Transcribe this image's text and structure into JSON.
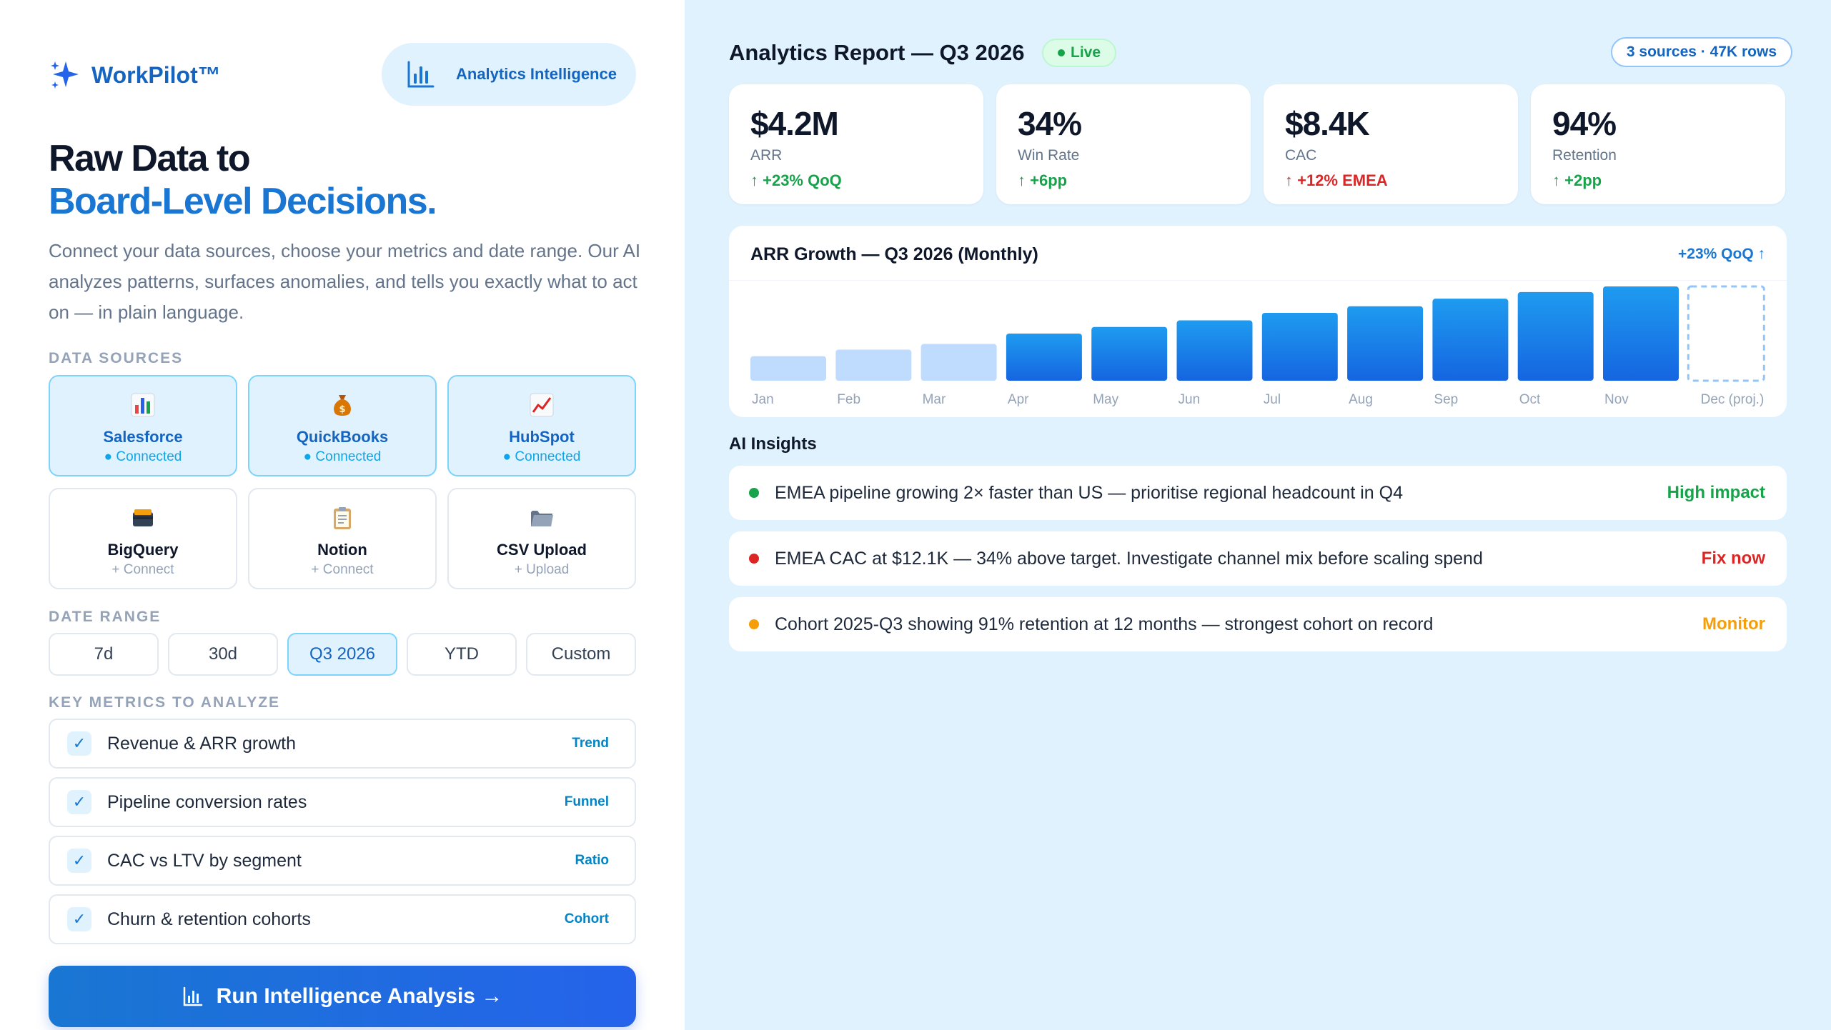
{
  "brand": {
    "name": "WorkPilot™"
  },
  "header_pill": {
    "label": "Analytics Intelligence"
  },
  "hero": {
    "line1": "Raw Data to",
    "line2": "Board-Level Decisions.",
    "description": "Connect your data sources, choose your metrics and date range. Our AI analyzes patterns, surfaces anomalies, and tells you exactly what to act on — in plain language."
  },
  "data_sources": {
    "label": "DATA SOURCES",
    "items": [
      {
        "name": "Salesforce",
        "status": "● Connected",
        "connected": true,
        "icon": "bar-chart-icon"
      },
      {
        "name": "QuickBooks",
        "status": "● Connected",
        "connected": true,
        "icon": "money-bag-icon"
      },
      {
        "name": "HubSpot",
        "status": "● Connected",
        "connected": true,
        "icon": "trend-chart-icon"
      },
      {
        "name": "BigQuery",
        "status": "+ Connect",
        "connected": false,
        "icon": "card-box-icon"
      },
      {
        "name": "Notion",
        "status": "+ Connect",
        "connected": false,
        "icon": "clipboard-icon"
      },
      {
        "name": "CSV Upload",
        "status": "+ Upload",
        "connected": false,
        "icon": "folder-icon"
      }
    ]
  },
  "date_range": {
    "label": "DATE RANGE",
    "options": [
      "7d",
      "30d",
      "Q3 2026",
      "YTD",
      "Custom"
    ],
    "selected": "Q3 2026"
  },
  "metrics": {
    "label": "KEY METRICS TO ANALYZE",
    "items": [
      {
        "label": "Revenue & ARR growth",
        "tag": "Trend",
        "checked": true
      },
      {
        "label": "Pipeline conversion rates",
        "tag": "Funnel",
        "checked": true
      },
      {
        "label": "CAC vs LTV by segment",
        "tag": "Ratio",
        "checked": true
      },
      {
        "label": "Churn & retention cohorts",
        "tag": "Cohort",
        "checked": true
      }
    ],
    "check_glyph": "✓"
  },
  "run_button": {
    "label": "Run Intelligence Analysis →"
  },
  "report": {
    "title": "Analytics Report — Q3 2026",
    "live_label": "Live",
    "sources_summary": "3 sources · 47K rows"
  },
  "kpis": [
    {
      "value": "$4.2M",
      "label": "ARR",
      "delta": "↑ +23% QoQ",
      "tone": "up"
    },
    {
      "value": "34%",
      "label": "Win Rate",
      "delta": "↑ +6pp",
      "tone": "up"
    },
    {
      "value": "$8.4K",
      "label": "CAC",
      "delta": "↑ +12% EMEA",
      "tone": "bad"
    },
    {
      "value": "94%",
      "label": "Retention",
      "delta": "↑ +2pp",
      "tone": "up"
    }
  ],
  "chart": {
    "title": "ARR Growth — Q3 2026 (Monthly)",
    "delta_label": "+23% QoQ ↑"
  },
  "chart_data": {
    "type": "bar",
    "title": "ARR Growth — Q3 2026 (Monthly)",
    "categories": [
      "Jan",
      "Feb",
      "Mar",
      "Apr",
      "May",
      "Jun",
      "Jul",
      "Aug",
      "Sep",
      "Oct",
      "Nov",
      "Dec (proj.)"
    ],
    "values": [
      26,
      33,
      39,
      50,
      57,
      64,
      72,
      79,
      87,
      94,
      100,
      100
    ],
    "highlight_from_index": 3,
    "projected_index": 11,
    "colors": {
      "past": "#bfdbfe",
      "current_top": "#1e9bf0",
      "current_bottom": "#1565e0",
      "projected": "#93c5fd"
    },
    "ylim": [
      0,
      100
    ],
    "xlabel": "",
    "ylabel": "",
    "grid": false
  },
  "insights": {
    "title": "AI Insights",
    "items": [
      {
        "text": "EMEA pipeline growing 2× faster than US — prioritise regional headcount in Q4",
        "tag": "High impact",
        "color": "#16a34a"
      },
      {
        "text": "EMEA CAC at $12.1K — 34% above target. Investigate channel mix before scaling spend",
        "tag": "Fix now",
        "color": "#dc2626"
      },
      {
        "text": "Cohort 2025-Q3 showing 91% retention at 12 months — strongest cohort on record",
        "tag": "Monitor",
        "color": "#f59e0b"
      }
    ]
  }
}
